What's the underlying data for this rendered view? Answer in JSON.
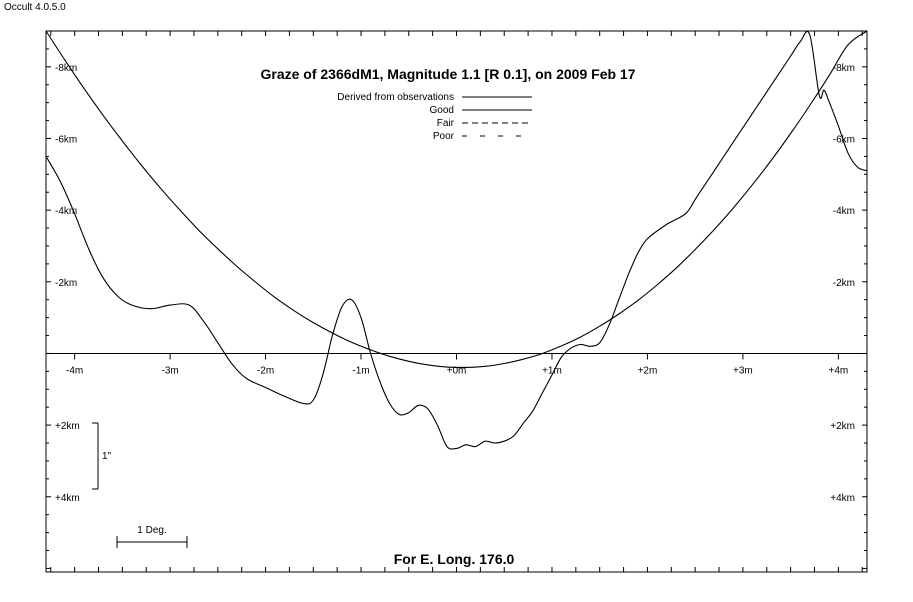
{
  "app_title": "Occult 4.0.5.0",
  "chart_data": {
    "type": "line",
    "title": "Graze of  2366dM1,  Magnitude 1.1 [R 0.1],  on 2009 Feb 17",
    "footer": "For E. Long. 176.0",
    "x_unit": "m",
    "y_unit": "km",
    "xlim": [
      -4.3,
      4.3
    ],
    "ylim": [
      -9.0,
      6.1
    ],
    "y_positive_down": true,
    "x_ticks": [
      -4,
      -3,
      -2,
      -1,
      0,
      1,
      2,
      3,
      4
    ],
    "x_tick_labels": [
      "-4m",
      "-3m",
      "-2m",
      "-1m",
      "+0m",
      "+1m",
      "+2m",
      "+3m",
      "+4m"
    ],
    "y_ticks": [
      -8,
      -6,
      -4,
      -2,
      2,
      4
    ],
    "y_tick_labels": [
      "-8km",
      "-6km",
      "-4km",
      "-2km",
      "+2km",
      "+4km"
    ],
    "zero_line": true,
    "legend": {
      "placement": "top-center",
      "entries": [
        {
          "label": "Derived from observations",
          "style": "solid"
        },
        {
          "label": "Good",
          "style": "solid"
        },
        {
          "label": "Fair",
          "style": "dashed"
        },
        {
          "label": "Poor",
          "style": "sparse-dashed"
        }
      ]
    },
    "scale_bars": {
      "vertical_label": "1\"",
      "horizontal_label": "1 Deg."
    },
    "series": [
      {
        "style": "solid",
        "x": [
          -4.3,
          -4.1,
          -3.9,
          -3.7,
          -3.5,
          -3.3,
          -3.1,
          -2.9,
          -2.7,
          -2.5,
          -2.3,
          -2.1,
          -1.9,
          -1.7,
          -1.5,
          -1.3,
          -1.1,
          -0.9,
          -0.7,
          -0.5,
          -0.3,
          -0.1,
          0.1,
          0.3,
          0.5,
          0.7,
          0.9,
          1.1,
          1.3,
          1.5,
          1.7,
          1.9,
          2.1,
          2.3,
          2.5,
          2.7,
          2.9,
          3.1,
          3.3,
          3.5,
          3.7,
          3.9,
          4.1,
          4.3
        ],
        "y": [
          -9.0,
          -8.18,
          -7.39,
          -6.64,
          -5.93,
          -5.25,
          -4.61,
          -4.01,
          -3.44,
          -2.92,
          -2.43,
          -1.98,
          -1.56,
          -1.19,
          -0.86,
          -0.57,
          -0.31,
          -0.1,
          0.08,
          0.22,
          0.32,
          0.38,
          0.39,
          0.36,
          0.28,
          0.16,
          0.0,
          -0.21,
          -0.46,
          -0.76,
          -1.1,
          -1.48,
          -1.91,
          -2.38,
          -2.9,
          -3.46,
          -4.06,
          -4.71,
          -5.4,
          -6.14,
          -6.92,
          -7.74,
          -8.61,
          -9.0
        ]
      },
      {
        "style": "solid",
        "x": [
          -4.3,
          -4.15,
          -4.0,
          -3.85,
          -3.7,
          -3.55,
          -3.4,
          -3.2,
          -3.0,
          -2.8,
          -2.65,
          -2.5,
          -2.35,
          -2.2,
          -2.0,
          -1.8,
          -1.6,
          -1.5,
          -1.4,
          -1.3,
          -1.2,
          -1.1,
          -1.0,
          -0.9,
          -0.8,
          -0.7,
          -0.6,
          -0.5,
          -0.4,
          -0.3,
          -0.2,
          -0.1,
          0.0,
          0.1,
          0.2,
          0.3,
          0.4,
          0.5,
          0.6,
          0.7,
          0.8,
          0.9,
          1.0,
          1.1,
          1.2,
          1.3,
          1.4,
          1.5,
          1.6,
          1.7,
          1.8,
          1.9,
          2.0,
          2.2,
          2.4,
          2.5,
          2.6,
          2.7,
          2.8,
          2.9,
          3.0,
          3.1,
          3.2,
          3.3,
          3.4,
          3.5,
          3.6,
          3.7,
          3.8,
          3.85,
          3.9,
          4.0,
          4.1,
          4.2,
          4.3
        ],
        "y": [
          -5.5,
          -4.8,
          -3.9,
          -2.9,
          -2.1,
          -1.6,
          -1.35,
          -1.25,
          -1.35,
          -1.35,
          -0.9,
          -0.3,
          0.3,
          0.7,
          0.95,
          1.2,
          1.4,
          1.3,
          0.6,
          -0.5,
          -1.3,
          -1.5,
          -1.0,
          0.0,
          0.8,
          1.4,
          1.7,
          1.65,
          1.45,
          1.55,
          2.0,
          2.6,
          2.65,
          2.55,
          2.6,
          2.45,
          2.5,
          2.45,
          2.3,
          1.95,
          1.6,
          1.1,
          0.6,
          0.1,
          -0.15,
          -0.25,
          -0.2,
          -0.3,
          -0.8,
          -1.5,
          -2.2,
          -2.8,
          -3.2,
          -3.6,
          -3.9,
          -4.3,
          -4.7,
          -5.1,
          -5.5,
          -5.9,
          -6.3,
          -6.7,
          -7.1,
          -7.5,
          -7.9,
          -8.3,
          -8.7,
          -8.9,
          -7.2,
          -7.35,
          -7.05,
          -6.35,
          -5.6,
          -5.2,
          -5.1
        ]
      }
    ]
  }
}
